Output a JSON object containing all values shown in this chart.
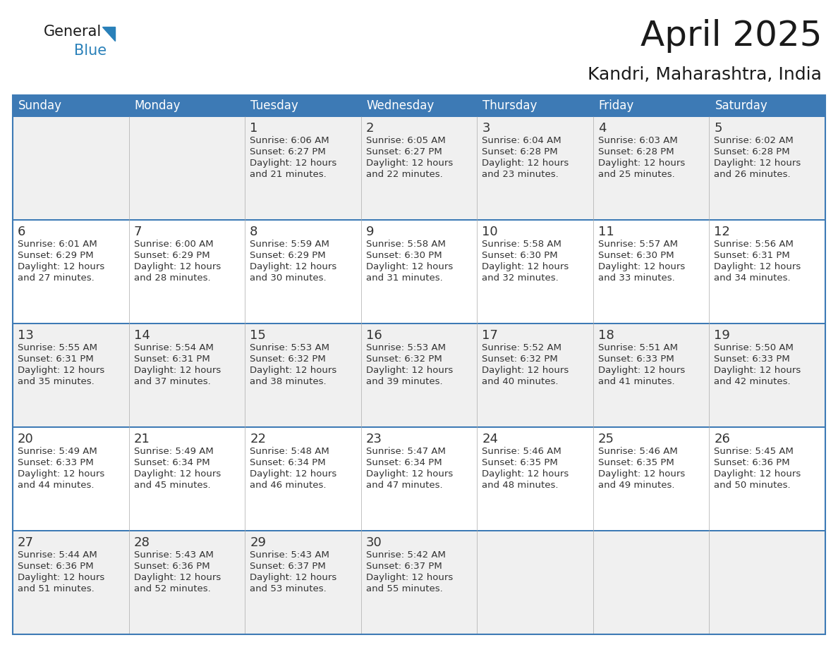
{
  "title": "April 2025",
  "subtitle": "Kandri, Maharashtra, India",
  "header_color": "#3d7ab5",
  "header_text_color": "#FFFFFF",
  "border_color": "#3d7ab5",
  "text_color": "#333333",
  "days_of_week": [
    "Sunday",
    "Monday",
    "Tuesday",
    "Wednesday",
    "Thursday",
    "Friday",
    "Saturday"
  ],
  "row_colors": [
    "#f0f0f0",
    "#ffffff",
    "#f0f0f0",
    "#ffffff",
    "#f0f0f0"
  ],
  "calendar_data": [
    [
      {
        "day": "",
        "sunrise": "",
        "sunset": "",
        "daylight_line1": "",
        "daylight_line2": ""
      },
      {
        "day": "",
        "sunrise": "",
        "sunset": "",
        "daylight_line1": "",
        "daylight_line2": ""
      },
      {
        "day": "1",
        "sunrise": "6:06 AM",
        "sunset": "6:27 PM",
        "daylight_line1": "12 hours",
        "daylight_line2": "and 21 minutes."
      },
      {
        "day": "2",
        "sunrise": "6:05 AM",
        "sunset": "6:27 PM",
        "daylight_line1": "12 hours",
        "daylight_line2": "and 22 minutes."
      },
      {
        "day": "3",
        "sunrise": "6:04 AM",
        "sunset": "6:28 PM",
        "daylight_line1": "12 hours",
        "daylight_line2": "and 23 minutes."
      },
      {
        "day": "4",
        "sunrise": "6:03 AM",
        "sunset": "6:28 PM",
        "daylight_line1": "12 hours",
        "daylight_line2": "and 25 minutes."
      },
      {
        "day": "5",
        "sunrise": "6:02 AM",
        "sunset": "6:28 PM",
        "daylight_line1": "12 hours",
        "daylight_line2": "and 26 minutes."
      }
    ],
    [
      {
        "day": "6",
        "sunrise": "6:01 AM",
        "sunset": "6:29 PM",
        "daylight_line1": "12 hours",
        "daylight_line2": "and 27 minutes."
      },
      {
        "day": "7",
        "sunrise": "6:00 AM",
        "sunset": "6:29 PM",
        "daylight_line1": "12 hours",
        "daylight_line2": "and 28 minutes."
      },
      {
        "day": "8",
        "sunrise": "5:59 AM",
        "sunset": "6:29 PM",
        "daylight_line1": "12 hours",
        "daylight_line2": "and 30 minutes."
      },
      {
        "day": "9",
        "sunrise": "5:58 AM",
        "sunset": "6:30 PM",
        "daylight_line1": "12 hours",
        "daylight_line2": "and 31 minutes."
      },
      {
        "day": "10",
        "sunrise": "5:58 AM",
        "sunset": "6:30 PM",
        "daylight_line1": "12 hours",
        "daylight_line2": "and 32 minutes."
      },
      {
        "day": "11",
        "sunrise": "5:57 AM",
        "sunset": "6:30 PM",
        "daylight_line1": "12 hours",
        "daylight_line2": "and 33 minutes."
      },
      {
        "day": "12",
        "sunrise": "5:56 AM",
        "sunset": "6:31 PM",
        "daylight_line1": "12 hours",
        "daylight_line2": "and 34 minutes."
      }
    ],
    [
      {
        "day": "13",
        "sunrise": "5:55 AM",
        "sunset": "6:31 PM",
        "daylight_line1": "12 hours",
        "daylight_line2": "and 35 minutes."
      },
      {
        "day": "14",
        "sunrise": "5:54 AM",
        "sunset": "6:31 PM",
        "daylight_line1": "12 hours",
        "daylight_line2": "and 37 minutes."
      },
      {
        "day": "15",
        "sunrise": "5:53 AM",
        "sunset": "6:32 PM",
        "daylight_line1": "12 hours",
        "daylight_line2": "and 38 minutes."
      },
      {
        "day": "16",
        "sunrise": "5:53 AM",
        "sunset": "6:32 PM",
        "daylight_line1": "12 hours",
        "daylight_line2": "and 39 minutes."
      },
      {
        "day": "17",
        "sunrise": "5:52 AM",
        "sunset": "6:32 PM",
        "daylight_line1": "12 hours",
        "daylight_line2": "and 40 minutes."
      },
      {
        "day": "18",
        "sunrise": "5:51 AM",
        "sunset": "6:33 PM",
        "daylight_line1": "12 hours",
        "daylight_line2": "and 41 minutes."
      },
      {
        "day": "19",
        "sunrise": "5:50 AM",
        "sunset": "6:33 PM",
        "daylight_line1": "12 hours",
        "daylight_line2": "and 42 minutes."
      }
    ],
    [
      {
        "day": "20",
        "sunrise": "5:49 AM",
        "sunset": "6:33 PM",
        "daylight_line1": "12 hours",
        "daylight_line2": "and 44 minutes."
      },
      {
        "day": "21",
        "sunrise": "5:49 AM",
        "sunset": "6:34 PM",
        "daylight_line1": "12 hours",
        "daylight_line2": "and 45 minutes."
      },
      {
        "day": "22",
        "sunrise": "5:48 AM",
        "sunset": "6:34 PM",
        "daylight_line1": "12 hours",
        "daylight_line2": "and 46 minutes."
      },
      {
        "day": "23",
        "sunrise": "5:47 AM",
        "sunset": "6:34 PM",
        "daylight_line1": "12 hours",
        "daylight_line2": "and 47 minutes."
      },
      {
        "day": "24",
        "sunrise": "5:46 AM",
        "sunset": "6:35 PM",
        "daylight_line1": "12 hours",
        "daylight_line2": "and 48 minutes."
      },
      {
        "day": "25",
        "sunrise": "5:46 AM",
        "sunset": "6:35 PM",
        "daylight_line1": "12 hours",
        "daylight_line2": "and 49 minutes."
      },
      {
        "day": "26",
        "sunrise": "5:45 AM",
        "sunset": "6:36 PM",
        "daylight_line1": "12 hours",
        "daylight_line2": "and 50 minutes."
      }
    ],
    [
      {
        "day": "27",
        "sunrise": "5:44 AM",
        "sunset": "6:36 PM",
        "daylight_line1": "12 hours",
        "daylight_line2": "and 51 minutes."
      },
      {
        "day": "28",
        "sunrise": "5:43 AM",
        "sunset": "6:36 PM",
        "daylight_line1": "12 hours",
        "daylight_line2": "and 52 minutes."
      },
      {
        "day": "29",
        "sunrise": "5:43 AM",
        "sunset": "6:37 PM",
        "daylight_line1": "12 hours",
        "daylight_line2": "and 53 minutes."
      },
      {
        "day": "30",
        "sunrise": "5:42 AM",
        "sunset": "6:37 PM",
        "daylight_line1": "12 hours",
        "daylight_line2": "and 55 minutes."
      },
      {
        "day": "",
        "sunrise": "",
        "sunset": "",
        "daylight_line1": "",
        "daylight_line2": ""
      },
      {
        "day": "",
        "sunrise": "",
        "sunset": "",
        "daylight_line1": "",
        "daylight_line2": ""
      },
      {
        "day": "",
        "sunrise": "",
        "sunset": "",
        "daylight_line1": "",
        "daylight_line2": ""
      }
    ]
  ],
  "logo_general_color": "#1a1a1a",
  "logo_blue_color": "#2980B9",
  "logo_triangle_color": "#2980B9",
  "title_fontsize": 36,
  "subtitle_fontsize": 18,
  "header_fontsize": 12,
  "day_num_fontsize": 13,
  "cell_text_fontsize": 9.5
}
